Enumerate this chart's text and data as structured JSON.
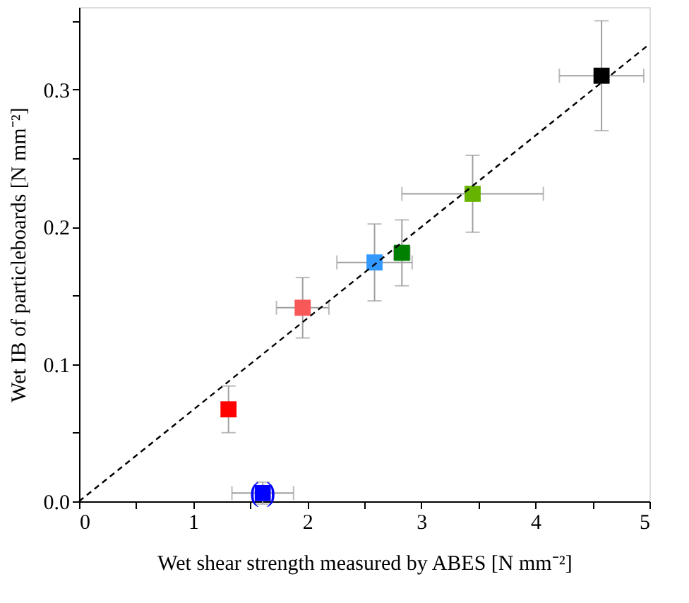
{
  "chart_data": {
    "type": "scatter",
    "xlabel": "Wet shear strength measured by ABES [N mm⁻²]",
    "ylabel": "Wet IB of particleboards [N mm⁻²]",
    "xlim": [
      0,
      5
    ],
    "ylim": [
      0,
      0.36
    ],
    "xticks": [
      0,
      {
        "value": 0.5,
        "label": null
      },
      1,
      {
        "value": 1.5,
        "label": null
      },
      2,
      {
        "value": 2.5,
        "label": null
      },
      3,
      {
        "value": 3.5,
        "label": null
      },
      4,
      {
        "value": 4.5,
        "label": null
      },
      5
    ],
    "yticks": [
      {
        "value": 0,
        "label": "0.0"
      },
      {
        "value": 0.05,
        "label": null
      },
      0.1,
      {
        "value": 0.15,
        "label": null
      },
      0.2,
      {
        "value": 0.25,
        "label": null
      },
      0.3,
      {
        "value": 0.35,
        "label": null
      }
    ],
    "grid": false,
    "marker": "square",
    "series": [
      {
        "x": [
          1.31,
          1.96,
          2.59,
          2.83,
          3.45,
          4.58,
          1.61
        ],
        "values": [
          0.067,
          0.141,
          0.174,
          0.181,
          0.224,
          0.31,
          0.006
        ],
        "colors": [
          "#ff0000",
          "#f85858",
          "#3399ff",
          "#008000",
          "#66b300",
          "#000000",
          "#0000ff"
        ],
        "errors": [
          0.017,
          0.022,
          0.028,
          0.024,
          0.028,
          0.04,
          0.008
        ],
        "xerrors": [
          null,
          0.23,
          0.33,
          0.07,
          0.62,
          0.37,
          0.27
        ]
      },
      {
        "type": "line",
        "x": [
          0,
          5
        ],
        "values": [
          0,
          0.333
        ],
        "color": "#000000",
        "line_style": "dashed",
        "marker": "none"
      }
    ],
    "annotations": [
      {
        "text": "(   )",
        "x": 1.61,
        "y": 0.006
      }
    ]
  }
}
